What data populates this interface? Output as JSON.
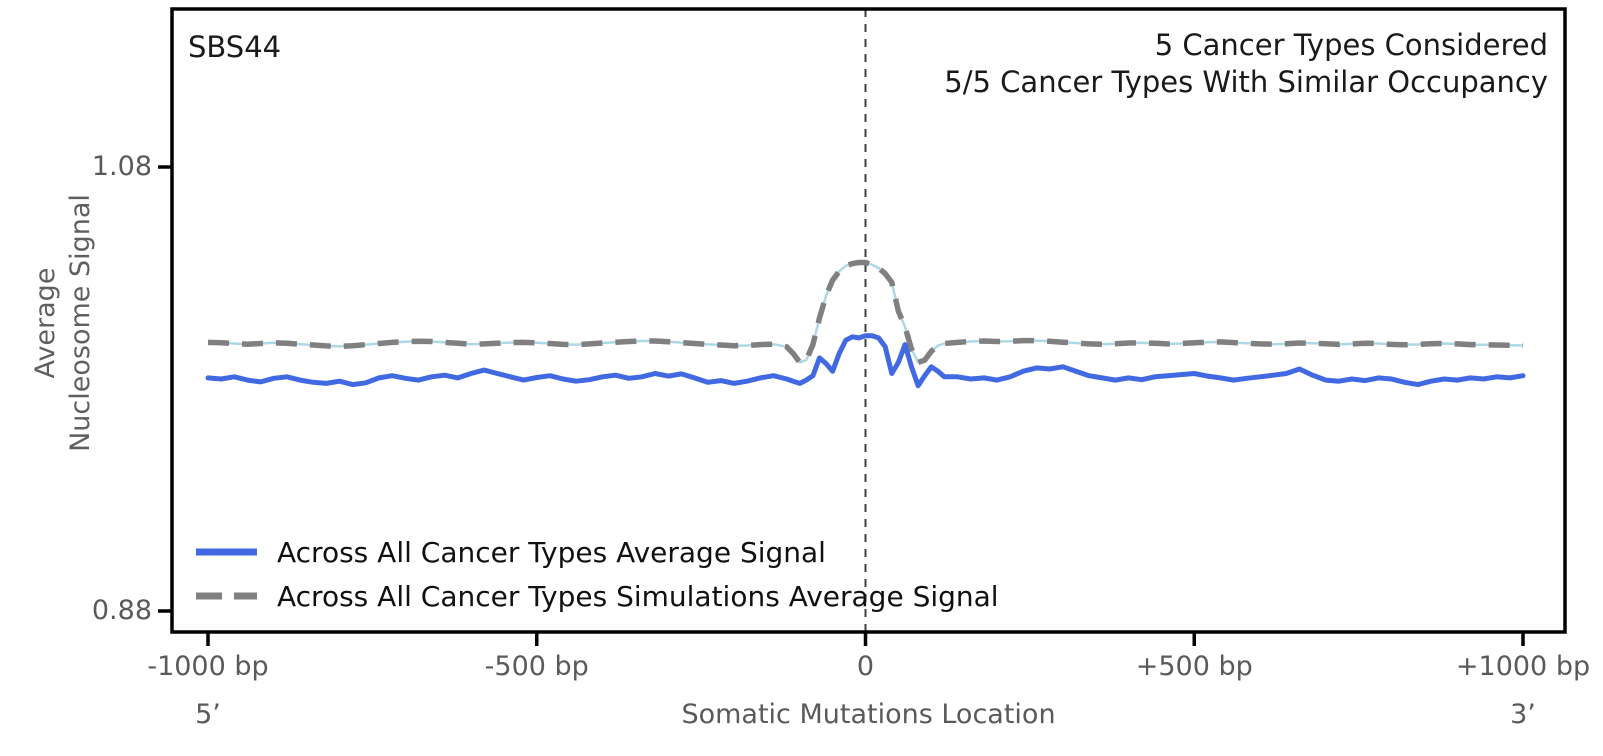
{
  "header": {
    "signature": "SBS44",
    "annotation_lines": [
      "5 Cancer Types Considered",
      "5/5 Cancer Types With Similar Occupancy"
    ]
  },
  "axis_annotations": {
    "five_prime": "5’",
    "three_prime": "3’"
  },
  "colors": {
    "real_signal": "#4169E1",
    "simulations_signal": "#808080",
    "simulations_underlay": "#ADD8E6",
    "vline": "#3f3f3f",
    "frame": "#000000",
    "tick_label": "#5a5a5a"
  },
  "chart_data": {
    "type": "line",
    "title": "SBS44",
    "xlabel": "Somatic Mutations Location",
    "ylabel": "Average\nNucleosome Signal",
    "xlim": [
      -1000,
      1000
    ],
    "ylim": [
      0.88,
      1.08
    ],
    "grid": false,
    "legend_position": "lower left",
    "vline_x": 0,
    "x_ticks": [
      {
        "value": -1000,
        "label": "-1000 bp"
      },
      {
        "value": -500,
        "label": "-500 bp"
      },
      {
        "value": 0,
        "label": "0"
      },
      {
        "value": 500,
        "label": "+500 bp"
      },
      {
        "value": 1000,
        "label": "+1000 bp"
      }
    ],
    "y_ticks": [
      {
        "value": 1.08,
        "label": "1.08"
      },
      {
        "value": 0.88,
        "label": "0.88"
      }
    ],
    "x": [
      -1000,
      -980,
      -960,
      -940,
      -920,
      -900,
      -880,
      -860,
      -840,
      -820,
      -800,
      -780,
      -760,
      -740,
      -720,
      -700,
      -680,
      -660,
      -640,
      -620,
      -600,
      -580,
      -560,
      -540,
      -520,
      -500,
      -480,
      -460,
      -440,
      -420,
      -400,
      -380,
      -360,
      -340,
      -320,
      -300,
      -280,
      -260,
      -240,
      -220,
      -200,
      -180,
      -160,
      -140,
      -120,
      -110,
      -100,
      -90,
      -80,
      -70,
      -60,
      -50,
      -40,
      -30,
      -20,
      -10,
      0,
      10,
      20,
      30,
      40,
      50,
      60,
      70,
      80,
      90,
      100,
      110,
      120,
      140,
      160,
      180,
      200,
      220,
      240,
      260,
      280,
      300,
      320,
      340,
      360,
      380,
      400,
      420,
      440,
      460,
      480,
      500,
      520,
      540,
      560,
      580,
      600,
      620,
      640,
      660,
      680,
      700,
      720,
      740,
      760,
      780,
      800,
      820,
      840,
      860,
      880,
      900,
      920,
      940,
      960,
      980,
      1000
    ],
    "series": [
      {
        "name": "Across All Cancer Types Average Signal",
        "color": "#4169E1",
        "style": "solid",
        "values": [
          0.985,
          0.9845,
          0.9855,
          0.984,
          0.9832,
          0.9848,
          0.9855,
          0.984,
          0.983,
          0.9825,
          0.9835,
          0.982,
          0.9828,
          0.985,
          0.986,
          0.9848,
          0.984,
          0.9855,
          0.9862,
          0.985,
          0.987,
          0.9885,
          0.987,
          0.9855,
          0.984,
          0.9852,
          0.986,
          0.9845,
          0.9835,
          0.9842,
          0.9855,
          0.9862,
          0.9848,
          0.9855,
          0.987,
          0.9858,
          0.9868,
          0.985,
          0.983,
          0.9838,
          0.9825,
          0.9835,
          0.985,
          0.986,
          0.9845,
          0.9835,
          0.9825,
          0.984,
          0.986,
          0.994,
          0.9915,
          0.988,
          0.996,
          1.002,
          1.0035,
          1.003,
          1.004,
          1.004,
          1.003,
          0.999,
          0.987,
          0.992,
          1.0,
          0.99,
          0.9815,
          0.986,
          0.99,
          0.988,
          0.9855,
          0.9855,
          0.9845,
          0.985,
          0.984,
          0.9855,
          0.988,
          0.9895,
          0.989,
          0.99,
          0.988,
          0.986,
          0.985,
          0.984,
          0.985,
          0.9842,
          0.9855,
          0.986,
          0.9865,
          0.987,
          0.9858,
          0.985,
          0.984,
          0.9848,
          0.9855,
          0.9862,
          0.987,
          0.989,
          0.9862,
          0.984,
          0.9835,
          0.9845,
          0.9838,
          0.985,
          0.9845,
          0.983,
          0.982,
          0.9835,
          0.9845,
          0.984,
          0.985,
          0.9845,
          0.9855,
          0.985,
          0.986
        ]
      },
      {
        "name": "Across All Cancer Types Simulations Average Signal",
        "color": "#808080",
        "underlay_color": "#ADD8E6",
        "style": "dashed",
        "values": [
          1.001,
          1.0008,
          1.0005,
          1.0002,
          1.0005,
          1.0008,
          1.0006,
          1.0002,
          0.9998,
          0.9994,
          0.9992,
          0.9995,
          1.0,
          1.0005,
          1.001,
          1.0013,
          1.0015,
          1.0014,
          1.001,
          1.0006,
          1.0002,
          1.0003,
          1.0006,
          1.0009,
          1.001,
          1.0008,
          1.0005,
          1.0001,
          1.0,
          1.0003,
          1.0007,
          1.0011,
          1.0014,
          1.0016,
          1.0016,
          1.0013,
          1.0009,
          1.0005,
          1.0001,
          0.9998,
          0.9995,
          0.9996,
          1.0,
          1.0002,
          0.999,
          0.996,
          0.992,
          0.993,
          1.0,
          1.012,
          1.022,
          1.029,
          1.033,
          1.0355,
          1.0365,
          1.037,
          1.037,
          1.036,
          1.0345,
          1.032,
          1.028,
          1.015,
          1.008,
          0.998,
          0.992,
          0.993,
          0.997,
          0.9995,
          1.0005,
          1.001,
          1.0014,
          1.0016,
          1.0014,
          1.0015,
          1.0018,
          1.0018,
          1.0015,
          1.0011,
          1.0007,
          1.0003,
          1.0002,
          1.0004,
          1.0007,
          1.0008,
          1.0006,
          1.0003,
          1.0005,
          1.0008,
          1.0011,
          1.0012,
          1.0009,
          1.0006,
          1.0003,
          1.0002,
          1.0004,
          1.0007,
          1.0006,
          1.0004,
          1.0001,
          1.0003,
          1.0006,
          1.0005,
          1.0001,
          0.9999,
          1.0001,
          1.0004,
          1.0005,
          1.0003,
          1.0,
          0.9999,
          0.9998,
          0.9997,
          0.9996
        ]
      }
    ]
  }
}
